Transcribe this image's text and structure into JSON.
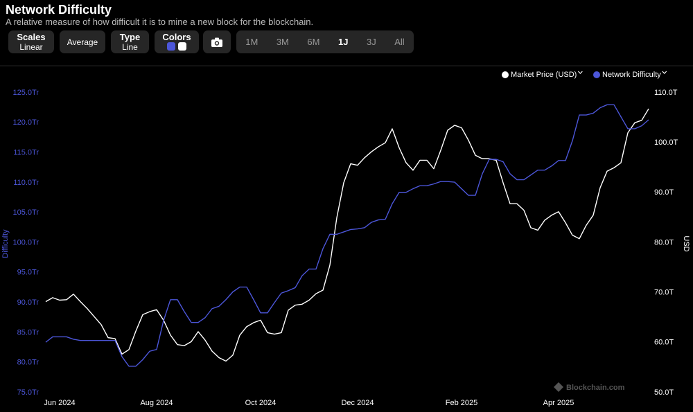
{
  "chart_data": {
    "type": "line",
    "title": "Network Difficulty",
    "subtitle": "A relative measure of how difficult it is to mine a new block for the blockchain.",
    "categories": [
      null,
      null,
      "Jun 2024",
      null,
      null,
      null,
      null,
      null,
      null,
      null,
      null,
      null,
      null,
      null,
      null,
      null,
      "Aug 2024",
      null,
      null,
      null,
      null,
      null,
      null,
      null,
      null,
      null,
      null,
      null,
      null,
      null,
      null,
      "Oct 2024",
      null,
      null,
      null,
      null,
      null,
      null,
      null,
      null,
      null,
      null,
      null,
      null,
      null,
      "Dec 2024",
      null,
      null,
      null,
      null,
      null,
      null,
      null,
      null,
      null,
      null,
      null,
      null,
      null,
      null,
      "Feb 2025",
      null,
      null,
      null,
      null,
      null,
      null,
      null,
      null,
      null,
      null,
      null,
      null,
      null,
      "Apr 2025",
      null,
      null,
      null,
      null,
      null,
      null,
      null,
      null,
      null,
      null,
      null,
      null,
      null
    ],
    "series": [
      {
        "name": "Market Price (USD)",
        "color": "#ffffff",
        "axis": "y2",
        "values": [
          68.2,
          69.0,
          68.5,
          68.6,
          69.7,
          68.2,
          66.8,
          65.2,
          63.6,
          61.0,
          60.8,
          57.7,
          58.6,
          62.3,
          65.6,
          66.2,
          66.6,
          64.5,
          61.5,
          59.6,
          59.4,
          60.2,
          62.2,
          60.5,
          58.3,
          57.0,
          56.3,
          57.5,
          61.5,
          63.2,
          64.0,
          64.5,
          62.0,
          61.7,
          62.0,
          66.5,
          67.5,
          67.7,
          68.5,
          69.8,
          70.5,
          75.5,
          85,
          92,
          95.8,
          95.5,
          97,
          98.2,
          99.2,
          100,
          102.8,
          99,
          96,
          94.5,
          96.5,
          96.5,
          94.8,
          98.5,
          102.5,
          103.5,
          103.0,
          100.5,
          97.5,
          96.8,
          96.8,
          96.5,
          92,
          87.8,
          87.8,
          86.5,
          83,
          82.5,
          84.5,
          85.5,
          86.2,
          84,
          81.5,
          80.8,
          83.5,
          85.5,
          91,
          94.3,
          95,
          96,
          102,
          104,
          104.5,
          106.8
        ]
      },
      {
        "name": "Network Difficulty",
        "color": "#4c56d9",
        "values": [
          83.4,
          84.3,
          84.3,
          84.3,
          83.9,
          83.7,
          83.7,
          83.7,
          83.7,
          83.7,
          83.7,
          81,
          79.4,
          79.4,
          80.5,
          81.9,
          82.2,
          87,
          90.5,
          90.5,
          88.5,
          86.7,
          86.7,
          87.5,
          89.0,
          89.4,
          90.5,
          91.8,
          92.6,
          92.6,
          90.5,
          88.3,
          88.3,
          90.0,
          91.6,
          92.0,
          92.5,
          94.5,
          95.6,
          95.6,
          99,
          101.4,
          101.4,
          101.8,
          102.2,
          102.3,
          102.5,
          103.4,
          103.8,
          103.9,
          106.5,
          108.4,
          108.4,
          109.0,
          109.5,
          109.5,
          109.8,
          110.2,
          110.2,
          110.1,
          109.0,
          107.9,
          107.9,
          111.5,
          113.9,
          113.9,
          113.5,
          111.5,
          110.5,
          110.5,
          111.3,
          112.1,
          112.1,
          112.8,
          113.7,
          113.7,
          117,
          121.3,
          121.3,
          121.6,
          122.5,
          123.0,
          123.0,
          121.0,
          119.0,
          119.0,
          119.5,
          120.5
        ]
      }
    ],
    "ylabel": "Difficulty",
    "y2label": "USD",
    "ylim": [
      75,
      125
    ],
    "yticks": [
      {
        "value": 75,
        "label": "75.0Tr"
      },
      {
        "value": 80,
        "label": "80.0Tr"
      },
      {
        "value": 85,
        "label": "85.0Tr"
      },
      {
        "value": 90,
        "label": "90.0Tr"
      },
      {
        "value": 95,
        "label": "95.0Tr"
      },
      {
        "value": 100,
        "label": "100.0Tr"
      },
      {
        "value": 105,
        "label": "105.0Tr"
      },
      {
        "value": 110,
        "label": "110.0Tr"
      },
      {
        "value": 115,
        "label": "115.0Tr"
      },
      {
        "value": 120,
        "label": "120.0Tr"
      },
      {
        "value": 125,
        "label": "125.0Tr"
      }
    ],
    "y2lim": [
      50,
      110
    ],
    "y2ticks": [
      {
        "value": 50,
        "label": "50.0T"
      },
      {
        "value": 60,
        "label": "60.0T"
      },
      {
        "value": 70,
        "label": "70.0T"
      },
      {
        "value": 80,
        "label": "80.0T"
      },
      {
        "value": 90,
        "label": "90.0T"
      },
      {
        "value": 100,
        "label": "100.0T"
      },
      {
        "value": 110,
        "label": "110.0T"
      }
    ],
    "grid": false,
    "legend": "top-right",
    "watermark": "Blockchain.com"
  },
  "toolbar": {
    "scales": {
      "label": "Scales",
      "value": "Linear"
    },
    "average": "Average",
    "type": {
      "label": "Type",
      "value": "Line"
    },
    "colors": "Colors",
    "ranges": [
      "1M",
      "3M",
      "6M",
      "1J",
      "3J",
      "All"
    ],
    "active_range": "1J"
  }
}
